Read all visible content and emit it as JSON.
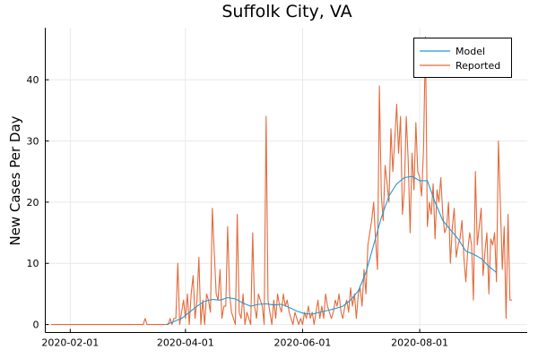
{
  "chart_data": {
    "type": "line",
    "title": "Suffolk City, VA",
    "xlabel": "",
    "ylabel": "New Cases Per Day",
    "x_tick_labels": [
      "2020-02-01",
      "2020-04-01",
      "2020-06-01",
      "2020-08-01"
    ],
    "y_tick_labels": [
      "0",
      "10",
      "20",
      "30",
      "40"
    ],
    "xlim": [
      "2020-01-19",
      "2020-09-26"
    ],
    "ylim": [
      -1.3,
      48.5
    ],
    "grid": true,
    "legend_position": "top-right",
    "series": [
      {
        "name": "Model",
        "color": "#1f9bd6",
        "points": [
          [
            "2020-03-22",
            0
          ],
          [
            "2020-03-26",
            0.5
          ],
          [
            "2020-03-30",
            1
          ],
          [
            "2020-04-03",
            2
          ],
          [
            "2020-04-07",
            3
          ],
          [
            "2020-04-11",
            3.8
          ],
          [
            "2020-04-15",
            4.1
          ],
          [
            "2020-04-19",
            4
          ],
          [
            "2020-04-23",
            4.4
          ],
          [
            "2020-04-27",
            4.2
          ],
          [
            "2020-05-01",
            3.5
          ],
          [
            "2020-05-05",
            3
          ],
          [
            "2020-05-09",
            3.3
          ],
          [
            "2020-05-13",
            3.4
          ],
          [
            "2020-05-17",
            3.2
          ],
          [
            "2020-05-21",
            3.3
          ],
          [
            "2020-05-25",
            2.8
          ],
          [
            "2020-05-29",
            2.2
          ],
          [
            "2020-06-02",
            1.8
          ],
          [
            "2020-06-06",
            1.7
          ],
          [
            "2020-06-10",
            2
          ],
          [
            "2020-06-14",
            2.3
          ],
          [
            "2020-06-18",
            2.6
          ],
          [
            "2020-06-22",
            3
          ],
          [
            "2020-06-26",
            4
          ],
          [
            "2020-06-30",
            5.5
          ],
          [
            "2020-07-04",
            8.5
          ],
          [
            "2020-07-08",
            13
          ],
          [
            "2020-07-12",
            17.5
          ],
          [
            "2020-07-16",
            21
          ],
          [
            "2020-07-20",
            23
          ],
          [
            "2020-07-24",
            24
          ],
          [
            "2020-07-28",
            24.2
          ],
          [
            "2020-08-01",
            23.5
          ],
          [
            "2020-08-05",
            23.5
          ],
          [
            "2020-08-09",
            20
          ],
          [
            "2020-08-13",
            17
          ],
          [
            "2020-08-17",
            15.5
          ],
          [
            "2020-08-21",
            14
          ],
          [
            "2020-08-25",
            12
          ],
          [
            "2020-08-29",
            11.5
          ],
          [
            "2020-09-02",
            10.8
          ],
          [
            "2020-09-06",
            9.5
          ],
          [
            "2020-09-10",
            8.5
          ]
        ]
      },
      {
        "name": "Reported",
        "color": "#e26a3b",
        "start": "2020-01-22",
        "values": [
          0,
          0,
          0,
          0,
          0,
          0,
          0,
          0,
          0,
          0,
          0,
          0,
          0,
          0,
          0,
          0,
          0,
          0,
          0,
          0,
          0,
          0,
          0,
          0,
          0,
          0,
          0,
          0,
          0,
          0,
          0,
          0,
          0,
          0,
          0,
          0,
          0,
          0,
          0,
          0,
          0,
          0,
          0,
          0,
          0,
          0,
          0,
          0,
          0,
          1,
          0,
          0,
          0,
          0,
          0,
          0,
          0,
          0,
          0,
          0,
          0,
          0,
          1,
          0,
          1,
          1,
          10,
          0,
          2,
          4,
          1,
          5,
          0,
          5,
          8,
          1,
          4,
          11,
          0,
          4,
          0,
          5,
          4,
          2,
          19,
          12,
          5,
          4,
          9,
          1,
          3,
          3,
          16,
          5,
          2,
          1,
          0,
          18,
          2,
          1,
          5,
          0,
          2,
          1,
          0,
          15,
          3,
          1,
          5,
          4,
          3,
          0,
          34,
          4,
          2,
          0,
          4,
          1,
          5,
          3,
          2,
          5,
          3,
          4,
          2,
          1,
          0,
          2,
          1,
          0,
          1,
          0,
          2,
          1,
          3,
          1,
          2,
          0,
          2,
          4,
          1,
          3,
          1,
          5,
          3,
          2,
          1,
          2,
          4,
          3,
          5,
          2,
          1,
          3,
          4,
          2,
          6,
          3,
          5,
          1,
          5,
          6,
          3,
          9,
          5,
          13,
          15,
          17,
          20,
          14,
          9,
          39,
          21,
          17,
          26,
          23,
          20,
          32,
          25,
          30,
          36,
          28,
          34,
          18,
          22,
          34,
          27,
          15,
          28,
          22,
          33,
          25,
          24,
          21,
          29,
          47,
          16,
          20,
          18,
          23,
          14,
          22,
          20,
          24,
          18,
          15,
          16,
          20,
          10,
          16,
          19,
          11,
          13,
          14,
          17,
          11,
          7,
          12,
          15,
          13,
          4,
          25,
          13,
          16,
          19,
          8,
          12,
          15,
          5,
          14,
          13,
          15,
          7,
          30,
          20,
          9,
          16,
          1,
          18,
          4,
          4
        ]
      }
    ]
  }
}
